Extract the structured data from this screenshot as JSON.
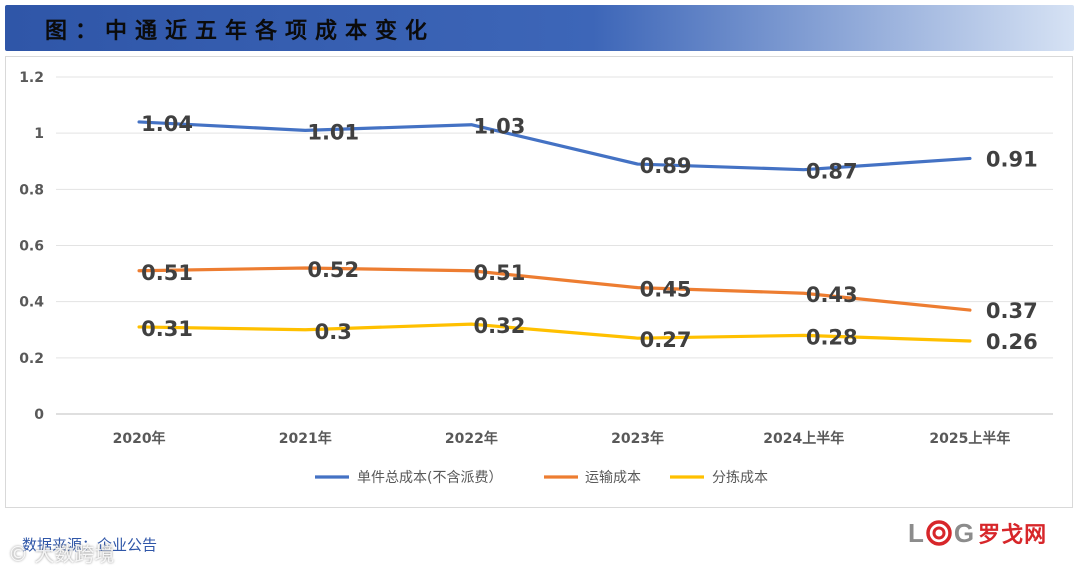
{
  "title": "图：中通近五年各项成本变化",
  "source": "数据来源：企业公告",
  "watermark": "© 大数跨境",
  "logo": {
    "letters_left": "L",
    "letters_right": "G",
    "chinese": "罗戈网",
    "ring_color": "#d7262a"
  },
  "colors": {
    "title_bar": "#2f56a8",
    "series": [
      "#4472c4",
      "#ed7d31",
      "#ffc000"
    ]
  },
  "chart_data": {
    "type": "line",
    "categories": [
      "2020年",
      "2021年",
      "2022年",
      "2023年",
      "2024上半年",
      "2025上半年"
    ],
    "ylim": [
      0,
      1.2
    ],
    "yticks": [
      "0",
      "0.2",
      "0.4",
      "0.6",
      "0.8",
      "1",
      "1.2"
    ],
    "grid": true,
    "legend_position": "bottom",
    "series": [
      {
        "name": "单件总成本(不含派费）",
        "values": [
          1.04,
          1.01,
          1.03,
          0.89,
          0.87,
          0.91
        ],
        "labels": [
          "1.04",
          "1.01",
          "1.03",
          "0.89",
          "0.87",
          "0.91"
        ]
      },
      {
        "name": "运输成本",
        "values": [
          0.51,
          0.52,
          0.51,
          0.45,
          0.43,
          0.37
        ],
        "labels": [
          "0.51",
          "0.52",
          "0.51",
          "0.45",
          "0.43",
          "0.37"
        ]
      },
      {
        "name": "分拣成本",
        "values": [
          0.31,
          0.3,
          0.32,
          0.27,
          0.28,
          0.26
        ],
        "labels": [
          "0.31",
          "0.3",
          "0.32",
          "0.27",
          "0.28",
          "0.26"
        ]
      }
    ]
  }
}
